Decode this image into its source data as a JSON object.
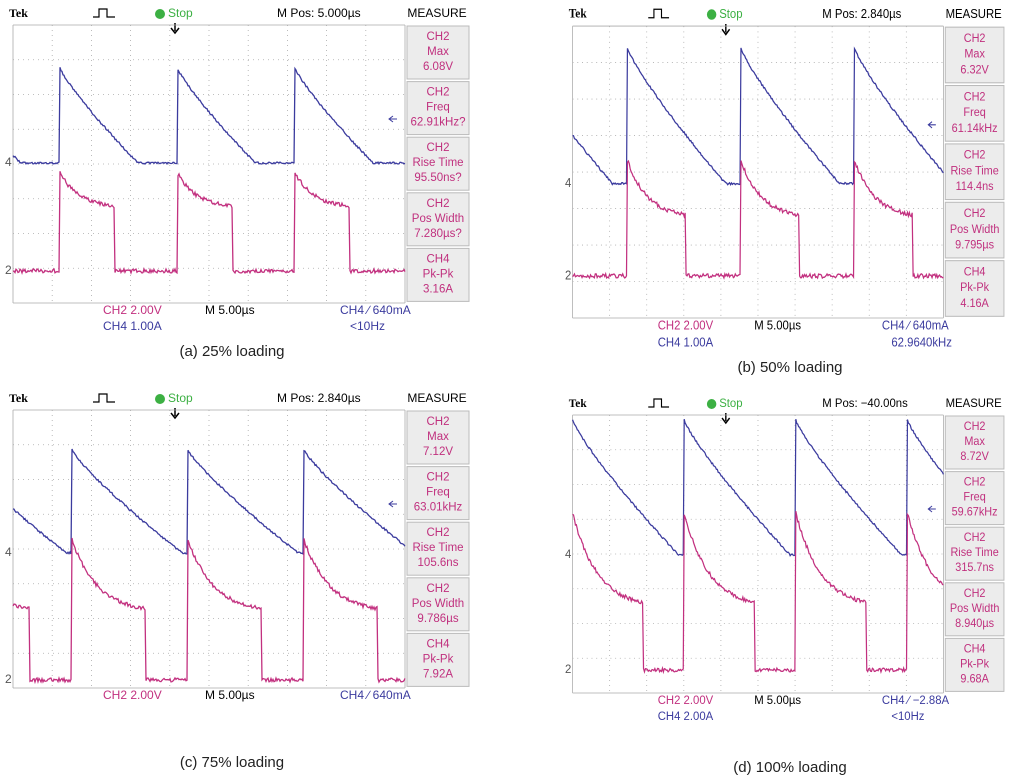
{
  "panels": [
    {
      "caption": "(a) 25% loading",
      "header": {
        "brand": "Tek",
        "status": "Stop",
        "mpos": "M Pos: 5.000µs",
        "measure": "MEASURE"
      },
      "measurements": [
        {
          "channel": "CH2",
          "name": "Max",
          "value": "6.08V"
        },
        {
          "channel": "CH2",
          "name": "Freq",
          "value": "62.91kHz?"
        },
        {
          "channel": "CH2",
          "name": "Rise Time",
          "value": "95.50ns?"
        },
        {
          "channel": "CH2",
          "name": "Pos Width",
          "value": "7.280µs?"
        },
        {
          "channel": "CH4",
          "name": "Pk-Pk",
          "value": "3.16A"
        }
      ],
      "markers": {
        "ch4": "4",
        "ch2": "2"
      },
      "footer": {
        "ch2_scale": "CH2  2.00V",
        "ch4_scale": "CH4  1.00A",
        "timebase": "M 5.00µs",
        "trigger": "CH4 ∕ 640mA",
        "trigger_freq": "<10Hz"
      }
    },
    {
      "caption": "(b) 50% loading",
      "header": {
        "brand": "Tek",
        "status": "Stop",
        "mpos": "M Pos: 2.840µs",
        "measure": "MEASURE"
      },
      "measurements": [
        {
          "channel": "CH2",
          "name": "Max",
          "value": "6.32V"
        },
        {
          "channel": "CH2",
          "name": "Freq",
          "value": "61.14kHz"
        },
        {
          "channel": "CH2",
          "name": "Rise Time",
          "value": "114.4ns"
        },
        {
          "channel": "CH2",
          "name": "Pos Width",
          "value": "9.795µs"
        },
        {
          "channel": "CH4",
          "name": "Pk-Pk",
          "value": "4.16A"
        }
      ],
      "markers": {
        "ch4": "4",
        "ch2": "2"
      },
      "footer": {
        "ch2_scale": "CH2  2.00V",
        "ch4_scale": "CH4  1.00A",
        "timebase": "M 5.00µs",
        "trigger": "CH4 ∕ 640mA",
        "trigger_freq": "62.9640kHz"
      }
    },
    {
      "caption": "(c) 75% loading",
      "header": {
        "brand": "Tek",
        "status": "Stop",
        "mpos": "M Pos: 2.840µs",
        "measure": "MEASURE"
      },
      "measurements": [
        {
          "channel": "CH2",
          "name": "Max",
          "value": "7.12V"
        },
        {
          "channel": "CH2",
          "name": "Freq",
          "value": "63.01kHz"
        },
        {
          "channel": "CH2",
          "name": "Rise Time",
          "value": "105.6ns"
        },
        {
          "channel": "CH2",
          "name": "Pos Width",
          "value": "9.786µs"
        },
        {
          "channel": "CH4",
          "name": "Pk-Pk",
          "value": "7.92A"
        }
      ],
      "markers": {
        "ch4": "4",
        "ch2": "2"
      },
      "footer": {
        "ch2_scale": "CH2  2.00V",
        "timebase": "M 5.00µs",
        "trigger": "CH4 ∕ 640mA"
      }
    },
    {
      "caption": "(d) 100% loading",
      "header": {
        "brand": "Tek",
        "status": "Stop",
        "mpos": "M Pos: −40.00ns",
        "measure": "MEASURE"
      },
      "measurements": [
        {
          "channel": "CH2",
          "name": "Max",
          "value": "8.72V"
        },
        {
          "channel": "CH2",
          "name": "Freq",
          "value": "59.67kHz"
        },
        {
          "channel": "CH2",
          "name": "Rise Time",
          "value": "315.7ns"
        },
        {
          "channel": "CH2",
          "name": "Pos Width",
          "value": "8.940µs"
        },
        {
          "channel": "CH4",
          "name": "Pk-Pk",
          "value": "9.68A"
        }
      ],
      "markers": {
        "ch4": "4",
        "ch2": "2"
      },
      "footer": {
        "ch2_scale": "CH2  2.00V",
        "ch4_scale": "CH4  2.00A",
        "timebase": "M 5.00µs",
        "trigger": "CH4 ∕ −2.88A",
        "trigger_freq": "<10Hz"
      }
    }
  ]
}
